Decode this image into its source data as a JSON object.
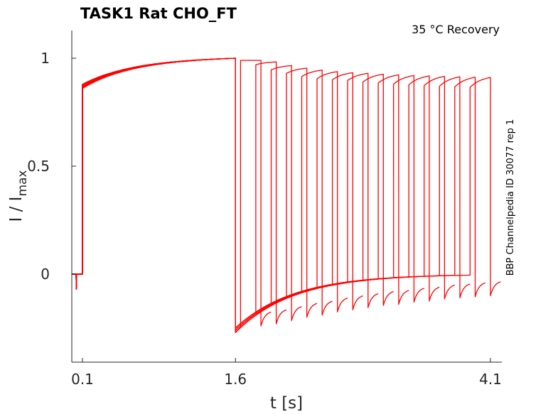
{
  "chart_data": {
    "type": "line",
    "title": "TASK1  Rat  CHO_FT",
    "annotation": "35 °C  Recovery",
    "side_label": "BBP Channelpedia ID 30077 rep 1",
    "xlabel": "t [s]",
    "ylabel_main": "I / I",
    "ylabel_sub": "max",
    "xlim": [
      0,
      4.21
    ],
    "ylim": [
      -0.41,
      1.13
    ],
    "xticks": [
      {
        "value": 0.1,
        "label": "0.1"
      },
      {
        "value": 1.6,
        "label": "1.6"
      },
      {
        "value": 4.1,
        "label": "4.1"
      }
    ],
    "yticks": [
      {
        "value": 0,
        "label": "0"
      },
      {
        "value": 0.5,
        "label": "0.5"
      },
      {
        "value": 1,
        "label": "1"
      }
    ],
    "grid": false,
    "series_color": "#ff0000",
    "protocol": {
      "prepulse_start": 0.1,
      "prepulse_end": 1.6,
      "prepulse_initial_value": 0.87,
      "prepulse_final_value": 1.0,
      "artifact_time": 0.04,
      "artifact_value": -0.07,
      "prepulse_tail_min": -0.27,
      "test_duration": 0.2,
      "sweep_tail_duration": 0.1,
      "test_starts": [
        1.65,
        1.8,
        1.95,
        2.1,
        2.25,
        2.4,
        2.55,
        2.7,
        2.85,
        3.0,
        3.15,
        3.3,
        3.45,
        3.6,
        3.75,
        3.9
      ],
      "test_start_values": [
        0.99,
        0.97,
        0.946,
        0.93,
        0.915,
        0.905,
        0.9,
        0.897,
        0.89,
        0.885,
        0.88,
        0.877,
        0.873,
        0.87,
        0.867,
        0.865
      ],
      "test_end_values": [
        0.99,
        0.983,
        0.966,
        0.954,
        0.945,
        0.938,
        0.933,
        0.93,
        0.926,
        0.923,
        0.92,
        0.918,
        0.916,
        0.914,
        0.912,
        0.911
      ],
      "test_tail_min_values": [
        -0.24,
        -0.23,
        -0.215,
        -0.2,
        -0.19,
        -0.175,
        -0.165,
        -0.155,
        -0.145,
        -0.14,
        -0.13,
        -0.125,
        -0.115,
        -0.11,
        -0.105,
        -0.1
      ]
    }
  }
}
